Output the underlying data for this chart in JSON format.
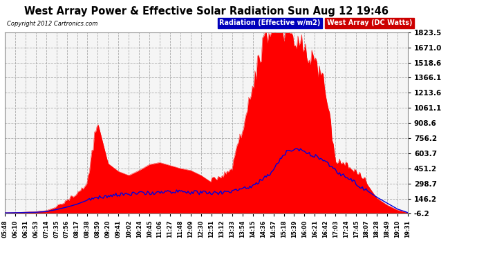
{
  "title": "West Array Power & Effective Solar Radiation Sun Aug 12 19:46",
  "copyright": "Copyright 2012 Cartronics.com",
  "legend_radiation": "Radiation (Effective w/m2)",
  "legend_west": "West Array (DC Watts)",
  "yticks": [
    -6.2,
    146.2,
    298.7,
    451.2,
    603.7,
    756.2,
    908.6,
    1061.1,
    1213.6,
    1366.1,
    1518.6,
    1671.0,
    1823.5
  ],
  "ymin": -6.2,
  "ymax": 1823.5,
  "bg_color": "#ffffff",
  "plot_bg_color": "#f0f0f0",
  "title_color": "#000000",
  "grid_color": "#aaaaaa",
  "radiation_color": "#0000cc",
  "west_array_color": "#ff0000",
  "xtick_labels": [
    "05:48",
    "06:10",
    "06:31",
    "06:53",
    "07:14",
    "07:35",
    "07:56",
    "08:17",
    "08:38",
    "08:59",
    "09:20",
    "09:41",
    "10:02",
    "10:24",
    "10:45",
    "11:06",
    "11:27",
    "11:48",
    "12:09",
    "12:30",
    "12:51",
    "13:12",
    "13:33",
    "13:54",
    "14:15",
    "14:36",
    "14:57",
    "15:18",
    "15:39",
    "16:00",
    "16:21",
    "16:42",
    "17:03",
    "17:24",
    "17:45",
    "18:07",
    "18:28",
    "18:49",
    "19:10",
    "19:31"
  ],
  "west_array_data": [
    5,
    8,
    10,
    15,
    25,
    60,
    110,
    180,
    270,
    910,
    500,
    420,
    380,
    430,
    490,
    510,
    480,
    450,
    430,
    380,
    310,
    350,
    420,
    800,
    1200,
    1600,
    1823,
    1700,
    1680,
    1550,
    1400,
    1200,
    500,
    450,
    400,
    300,
    150,
    80,
    30,
    5
  ],
  "radiation_data": [
    2,
    4,
    6,
    8,
    15,
    35,
    60,
    90,
    130,
    160,
    175,
    185,
    190,
    200,
    205,
    210,
    215,
    215,
    210,
    205,
    200,
    205,
    215,
    240,
    280,
    350,
    430,
    600,
    650,
    620,
    580,
    530,
    430,
    360,
    300,
    230,
    160,
    100,
    40,
    5
  ]
}
